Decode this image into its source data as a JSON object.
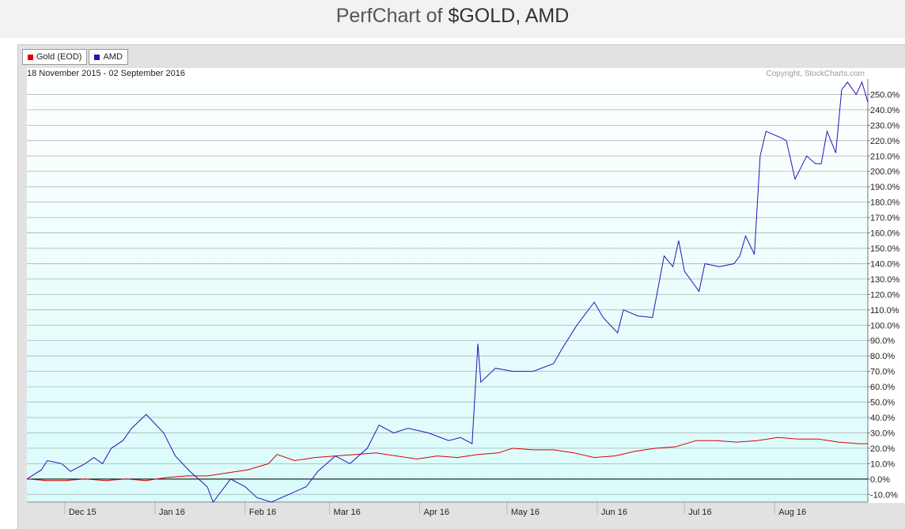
{
  "header": {
    "title_prefix": "PerfChart of",
    "title_tickers": "$GOLD, AMD"
  },
  "chart_data": {
    "type": "line",
    "title": "PerfChart of $GOLD, AMD",
    "date_range": "18 November 2015 - 02 September 2016",
    "copyright": "Copyright, StockCharts.com",
    "ylim": [
      -15,
      260
    ],
    "yticks": [
      {
        "value": -10,
        "label": "-10.0%"
      },
      {
        "value": 0,
        "label": "0.0%"
      },
      {
        "value": 10,
        "label": "10.0%"
      },
      {
        "value": 20,
        "label": "20.0%"
      },
      {
        "value": 30,
        "label": "30.0%"
      },
      {
        "value": 40,
        "label": "40.0%"
      },
      {
        "value": 50,
        "label": "50.0%"
      },
      {
        "value": 60,
        "label": "60.0%"
      },
      {
        "value": 70,
        "label": "70.0%"
      },
      {
        "value": 80,
        "label": "80.0%"
      },
      {
        "value": 90,
        "label": "90.0%"
      },
      {
        "value": 100,
        "label": "100.0%"
      },
      {
        "value": 110,
        "label": "110.0%"
      },
      {
        "value": 120,
        "label": "120.0%"
      },
      {
        "value": 130,
        "label": "130.0%"
      },
      {
        "value": 140,
        "label": "140.0%"
      },
      {
        "value": 150,
        "label": "150.0%"
      },
      {
        "value": 160,
        "label": "160.0%"
      },
      {
        "value": 170,
        "label": "170.0%"
      },
      {
        "value": 180,
        "label": "180.0%"
      },
      {
        "value": 190,
        "label": "190.0%"
      },
      {
        "value": 200,
        "label": "200.0%"
      },
      {
        "value": 210,
        "label": "210.0%"
      },
      {
        "value": 220,
        "label": "220.0%"
      },
      {
        "value": 230,
        "label": "230.0%"
      },
      {
        "value": 240,
        "label": "240.0%"
      },
      {
        "value": 250,
        "label": "250.0%"
      }
    ],
    "xlim": [
      "2015-11-18",
      "2016-09-02"
    ],
    "xticks": [
      {
        "date": "2015-12-01",
        "label": "Dec 15"
      },
      {
        "date": "2016-01-01",
        "label": "Jan 16"
      },
      {
        "date": "2016-02-01",
        "label": "Feb 16"
      },
      {
        "date": "2016-03-01",
        "label": "Mar 16"
      },
      {
        "date": "2016-04-01",
        "label": "Apr 16"
      },
      {
        "date": "2016-05-01",
        "label": "May 16"
      },
      {
        "date": "2016-06-01",
        "label": "Jun 16"
      },
      {
        "date": "2016-07-01",
        "label": "Jul 16"
      },
      {
        "date": "2016-08-01",
        "label": "Aug 16"
      }
    ],
    "grid": true,
    "legend_position": "top-left",
    "series": [
      {
        "name": "Gold (EOD)",
        "color": "#dd0000",
        "points": [
          [
            "2015-11-18",
            0
          ],
          [
            "2015-11-25",
            -1
          ],
          [
            "2015-12-01",
            -1
          ],
          [
            "2015-12-08",
            0
          ],
          [
            "2015-12-15",
            -1
          ],
          [
            "2015-12-22",
            0
          ],
          [
            "2015-12-29",
            -1
          ],
          [
            "2016-01-05",
            1
          ],
          [
            "2016-01-12",
            2
          ],
          [
            "2016-01-19",
            2
          ],
          [
            "2016-01-26",
            4
          ],
          [
            "2016-02-02",
            6
          ],
          [
            "2016-02-09",
            10
          ],
          [
            "2016-02-12",
            16
          ],
          [
            "2016-02-18",
            12
          ],
          [
            "2016-02-25",
            14
          ],
          [
            "2016-03-03",
            15
          ],
          [
            "2016-03-10",
            16
          ],
          [
            "2016-03-17",
            17
          ],
          [
            "2016-03-24",
            15
          ],
          [
            "2016-03-31",
            13
          ],
          [
            "2016-04-07",
            15
          ],
          [
            "2016-04-14",
            14
          ],
          [
            "2016-04-21",
            16
          ],
          [
            "2016-04-28",
            17
          ],
          [
            "2016-05-03",
            20
          ],
          [
            "2016-05-10",
            19
          ],
          [
            "2016-05-17",
            19
          ],
          [
            "2016-05-24",
            17
          ],
          [
            "2016-05-31",
            14
          ],
          [
            "2016-06-07",
            15
          ],
          [
            "2016-06-14",
            18
          ],
          [
            "2016-06-21",
            20
          ],
          [
            "2016-06-28",
            21
          ],
          [
            "2016-07-05",
            25
          ],
          [
            "2016-07-12",
            25
          ],
          [
            "2016-07-19",
            24
          ],
          [
            "2016-07-26",
            25
          ],
          [
            "2016-08-02",
            27
          ],
          [
            "2016-08-09",
            26
          ],
          [
            "2016-08-16",
            26
          ],
          [
            "2016-08-23",
            24
          ],
          [
            "2016-08-30",
            23
          ],
          [
            "2016-09-02",
            23
          ]
        ]
      },
      {
        "name": "AMD",
        "color": "#2a12b8",
        "points": [
          [
            "2015-11-18",
            0
          ],
          [
            "2015-11-23",
            6
          ],
          [
            "2015-11-25",
            12
          ],
          [
            "2015-11-30",
            10
          ],
          [
            "2015-12-03",
            5
          ],
          [
            "2015-12-08",
            10
          ],
          [
            "2015-12-11",
            14
          ],
          [
            "2015-12-14",
            10
          ],
          [
            "2015-12-17",
            20
          ],
          [
            "2015-12-21",
            25
          ],
          [
            "2015-12-24",
            33
          ],
          [
            "2015-12-29",
            42
          ],
          [
            "2016-01-04",
            30
          ],
          [
            "2016-01-08",
            15
          ],
          [
            "2016-01-13",
            5
          ],
          [
            "2016-01-19",
            -5
          ],
          [
            "2016-01-21",
            -15
          ],
          [
            "2016-01-27",
            0
          ],
          [
            "2016-02-01",
            -5
          ],
          [
            "2016-02-05",
            -12
          ],
          [
            "2016-02-10",
            -15
          ],
          [
            "2016-02-16",
            -10
          ],
          [
            "2016-02-22",
            -5
          ],
          [
            "2016-02-26",
            5
          ],
          [
            "2016-03-03",
            15
          ],
          [
            "2016-03-08",
            10
          ],
          [
            "2016-03-14",
            20
          ],
          [
            "2016-03-18",
            35
          ],
          [
            "2016-03-23",
            30
          ],
          [
            "2016-03-28",
            33
          ],
          [
            "2016-04-04",
            30
          ],
          [
            "2016-04-11",
            25
          ],
          [
            "2016-04-15",
            27
          ],
          [
            "2016-04-19",
            23
          ],
          [
            "2016-04-21",
            88
          ],
          [
            "2016-04-22",
            63
          ],
          [
            "2016-04-27",
            72
          ],
          [
            "2016-05-03",
            70
          ],
          [
            "2016-05-10",
            70
          ],
          [
            "2016-05-17",
            75
          ],
          [
            "2016-05-20",
            85
          ],
          [
            "2016-05-25",
            100
          ],
          [
            "2016-05-31",
            115
          ],
          [
            "2016-06-03",
            105
          ],
          [
            "2016-06-08",
            95
          ],
          [
            "2016-06-10",
            110
          ],
          [
            "2016-06-15",
            106
          ],
          [
            "2016-06-20",
            105
          ],
          [
            "2016-06-24",
            145
          ],
          [
            "2016-06-27",
            138
          ],
          [
            "2016-06-29",
            155
          ],
          [
            "2016-07-01",
            135
          ],
          [
            "2016-07-06",
            122
          ],
          [
            "2016-07-08",
            140
          ],
          [
            "2016-07-13",
            138
          ],
          [
            "2016-07-18",
            140
          ],
          [
            "2016-07-20",
            145
          ],
          [
            "2016-07-22",
            158
          ],
          [
            "2016-07-25",
            146
          ],
          [
            "2016-07-27",
            210
          ],
          [
            "2016-07-29",
            226
          ],
          [
            "2016-08-03",
            222
          ],
          [
            "2016-08-05",
            220
          ],
          [
            "2016-08-08",
            195
          ],
          [
            "2016-08-12",
            210
          ],
          [
            "2016-08-15",
            205
          ],
          [
            "2016-08-17",
            205
          ],
          [
            "2016-08-19",
            226
          ],
          [
            "2016-08-22",
            212
          ],
          [
            "2016-08-24",
            253
          ],
          [
            "2016-08-26",
            258
          ],
          [
            "2016-08-29",
            250
          ],
          [
            "2016-08-31",
            258
          ],
          [
            "2016-09-02",
            245
          ]
        ]
      }
    ]
  }
}
